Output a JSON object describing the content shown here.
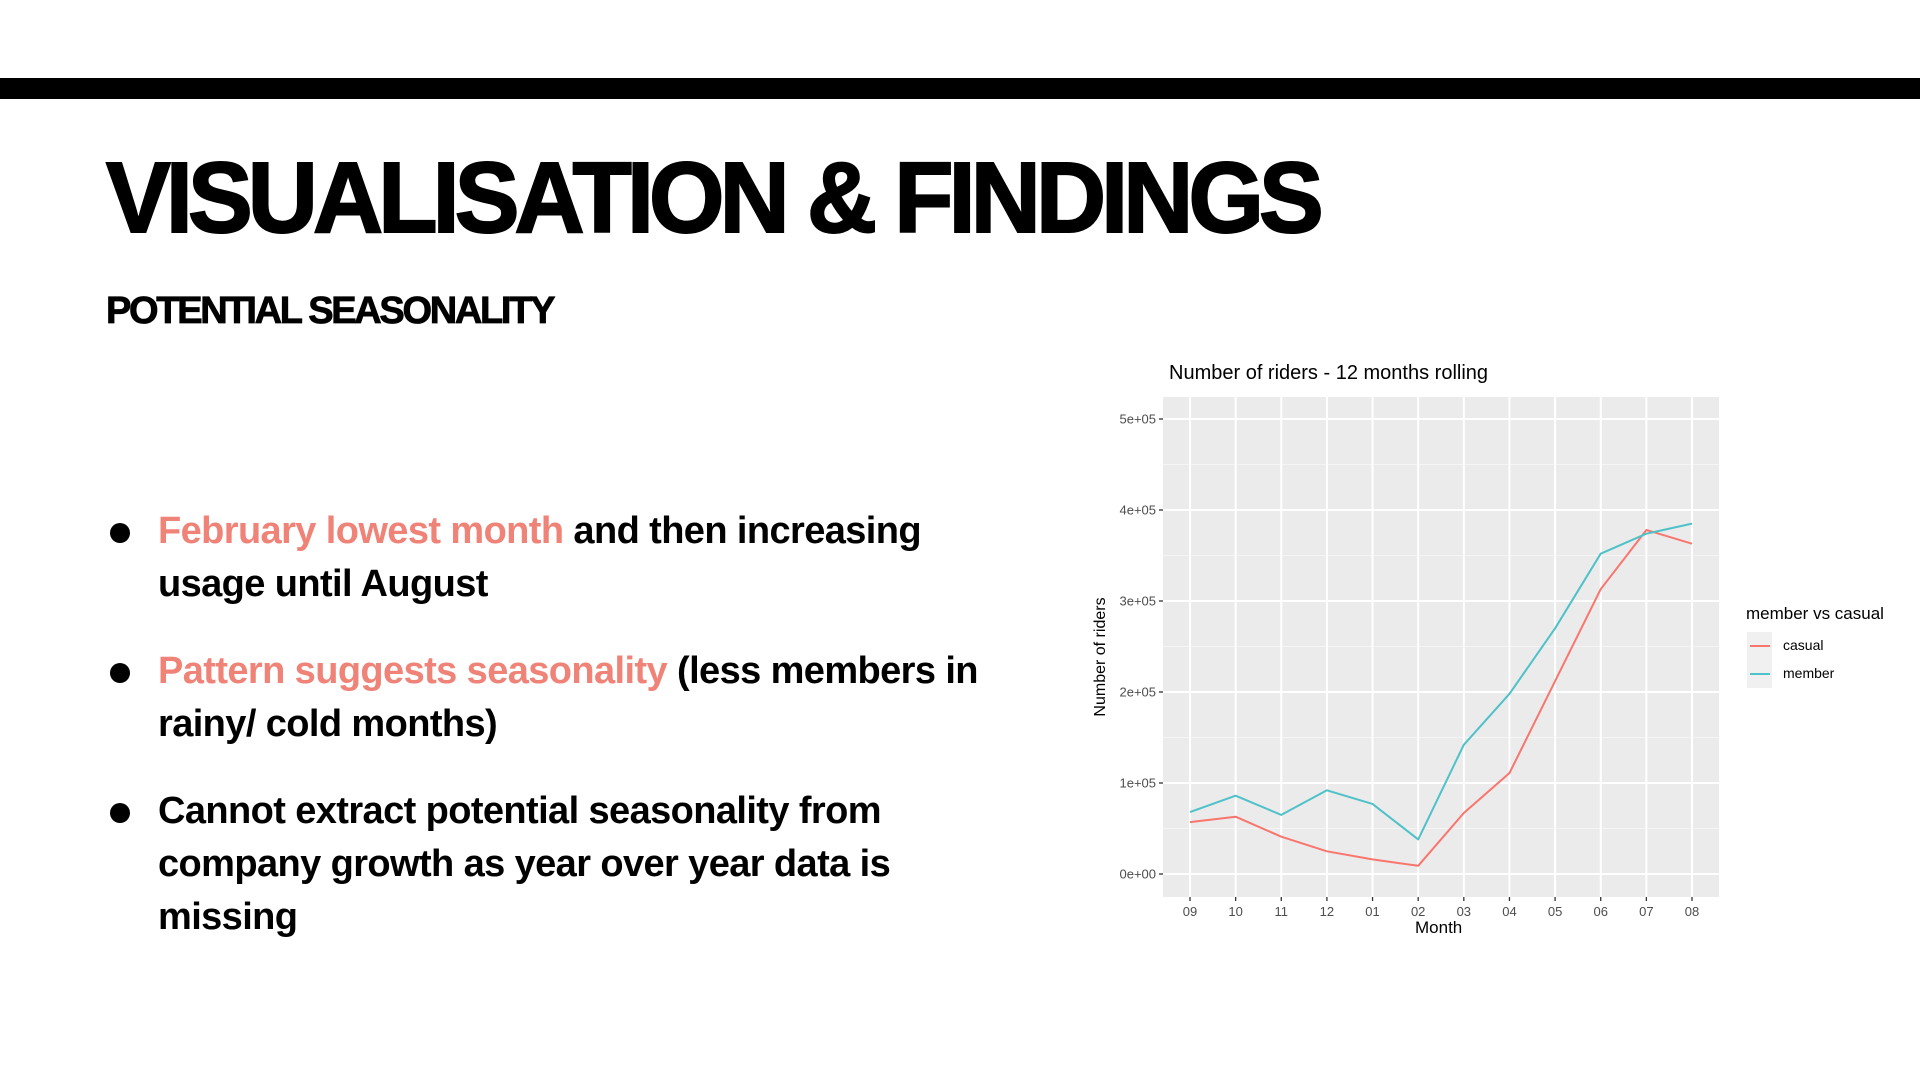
{
  "slide": {
    "title": "VISUALISATION & FINDINGS",
    "subtitle": "POTENTIAL SEASONALITY",
    "accent_color": "#F08378",
    "bullets": [
      {
        "highlight": "February lowest month",
        "rest": " and then increasing usage until August"
      },
      {
        "highlight": "Pattern suggests seasonality",
        "rest": " (less members in rainy/ cold months)"
      },
      {
        "highlight": "",
        "rest": "Cannot extract potential seasonality from company growth as year over year data is missing"
      }
    ]
  },
  "chart_data": {
    "type": "line",
    "title": "Number of riders - 12 months rolling",
    "xlabel": "Month",
    "ylabel": "Number of riders",
    "categories": [
      "09",
      "10",
      "11",
      "12",
      "01",
      "02",
      "03",
      "04",
      "05",
      "06",
      "07",
      "08"
    ],
    "y_ticks": [
      "0e+00",
      "1e+05",
      "2e+05",
      "3e+05",
      "4e+05",
      "5e+05"
    ],
    "ylim": [
      -25000,
      525000
    ],
    "grid": true,
    "legend_title": "member vs casual",
    "legend_position": "right",
    "series": [
      {
        "name": "casual",
        "color": "#F8766D",
        "values": [
          57000,
          63000,
          41000,
          25000,
          16000,
          9000,
          67000,
          111000,
          212000,
          313000,
          378000,
          363000
        ]
      },
      {
        "name": "member",
        "color": "#4FC1C9",
        "values": [
          68000,
          86000,
          65000,
          92000,
          77000,
          38000,
          142000,
          198000,
          270000,
          352000,
          374000,
          385000
        ]
      }
    ]
  }
}
